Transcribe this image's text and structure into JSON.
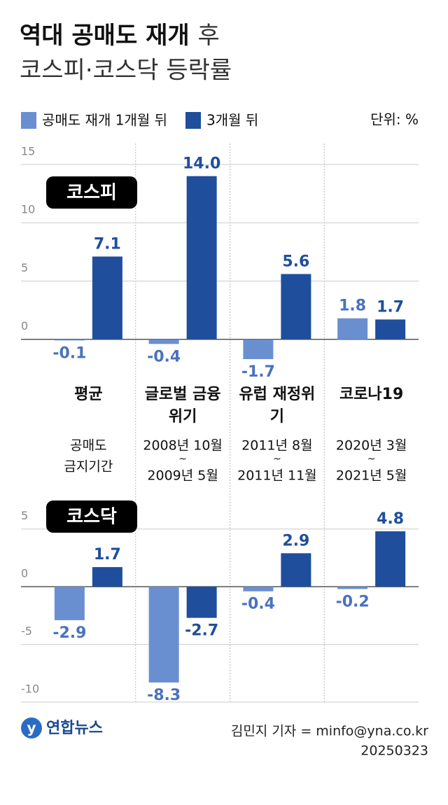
{
  "title": "역대 공매도 재개",
  "title_rest": "후",
  "subtitle": "코스피·코스닥 등락률",
  "unit": "단위: %",
  "periods": [
    [
      "공매도",
      "금지기간"
    ],
    [
      "2008년 10월",
      "~",
      "2009년 5월"
    ],
    [
      "2011년 8월",
      "~",
      "2011년 11월"
    ],
    [
      "2020년 3월",
      "~",
      "2021년 5월"
    ]
  ],
  "logo": "연합뉴스",
  "credit": "김민지 기자 = minfo@yna.co.kr",
  "date": "20250323",
  "chart_data": [
    {
      "type": "bar",
      "label": "코스피",
      "categories": [
        "평균",
        "글로벌 금융위기",
        "유럽 재정위기",
        "코로나19"
      ],
      "series": [
        {
          "name": "공매도 재개 1개월 뒤",
          "color": "#6a8fd0",
          "values": [
            -0.1,
            -0.4,
            -1.7,
            1.8
          ],
          "value_labels": [
            "-0.1",
            "-0.4",
            "-1.7",
            "1.8"
          ]
        },
        {
          "name": "3개월 뒤",
          "color": "#1f4e9c",
          "values": [
            7.1,
            14.0,
            5.6,
            1.7
          ],
          "value_labels": [
            "7.1",
            "14.0",
            "5.6",
            "1.7"
          ]
        }
      ],
      "ylim": [
        -2,
        16.8
      ],
      "yticks": [
        0,
        5,
        10,
        15
      ],
      "grid": true
    },
    {
      "type": "bar",
      "label": "코스닥",
      "series": [
        {
          "color": "#6a8fd0",
          "values": [
            -2.9,
            -8.3,
            -0.4,
            -0.2
          ],
          "value_labels": [
            "-2.9",
            "-8.3",
            "-0.4",
            "-0.2"
          ]
        },
        {
          "color": "#1f4e9c",
          "values": [
            1.7,
            -2.7,
            2.9,
            4.8
          ],
          "value_labels": [
            "1.7",
            "-2.7",
            "2.9",
            "4.8"
          ]
        }
      ],
      "ylim": [
        -10,
        6.5
      ],
      "yticks": [
        -10,
        -5,
        0,
        5
      ],
      "grid": true
    }
  ]
}
